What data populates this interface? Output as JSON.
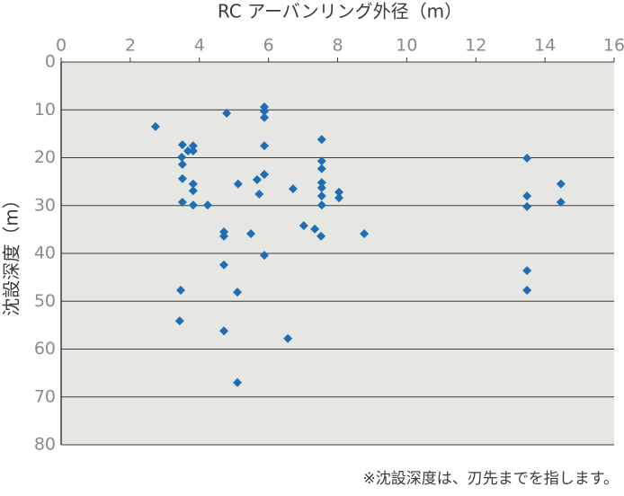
{
  "chart_data": {
    "type": "scatter",
    "x_label": "RC アーバンリング外径（m）",
    "y_label": "沈設深度（m）",
    "note": "※沈設深度は、刃先までを指します。",
    "color": "#1f6db3",
    "grid": true,
    "y_inverted": true,
    "x_axis_position": "top",
    "xlim": [
      0,
      16
    ],
    "xticks": [
      0,
      2,
      4,
      6,
      8,
      10,
      12,
      14,
      16
    ],
    "ylim": [
      0,
      80
    ],
    "yticks": [
      0,
      10,
      20,
      30,
      40,
      50,
      60,
      70,
      80
    ],
    "x": [
      2.73,
      4.79,
      5.88,
      5.88,
      5.88,
      3.51,
      3.82,
      3.67,
      3.82,
      3.49,
      3.51,
      5.88,
      7.54,
      7.54,
      7.54,
      5.88,
      5.67,
      3.51,
      3.82,
      3.82,
      5.12,
      5.73,
      6.71,
      7.54,
      7.54,
      7.54,
      8.04,
      8.04,
      7.54,
      3.51,
      3.82,
      4.24,
      4.71,
      4.71,
      5.49,
      7.02,
      7.34,
      7.52,
      8.77,
      5.88,
      4.71,
      3.46,
      5.1,
      3.43,
      4.71,
      6.56,
      5.1,
      13.48,
      14.46,
      13.48,
      13.48,
      14.46,
      13.48,
      13.48
    ],
    "values": [
      13.5,
      10.7,
      9.4,
      10.3,
      11.6,
      17.3,
      17.5,
      18.6,
      18.6,
      19.9,
      21.4,
      17.5,
      16.2,
      20.7,
      22.3,
      23.5,
      24.6,
      24.4,
      25.5,
      26.9,
      25.5,
      27.6,
      26.5,
      25.2,
      26.3,
      28.0,
      27.2,
      28.4,
      29.9,
      29.3,
      29.9,
      29.9,
      35.5,
      36.4,
      35.9,
      34.2,
      34.9,
      36.4,
      35.9,
      40.4,
      42.4,
      47.7,
      48.1,
      54.1,
      56.2,
      57.8,
      67.0,
      20.1,
      25.5,
      28.0,
      30.2,
      29.3,
      43.6,
      47.7
    ]
  }
}
